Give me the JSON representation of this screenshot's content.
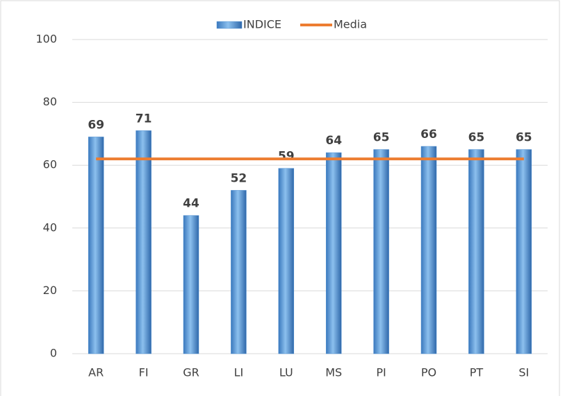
{
  "chart_data": {
    "type": "bar",
    "categories": [
      "AR",
      "FI",
      "GR",
      "LI",
      "LU",
      "MS",
      "PI",
      "PO",
      "PT",
      "SI"
    ],
    "series": [
      {
        "name": "INDICE",
        "type": "bar",
        "color": "#4f8fd1",
        "values": [
          69,
          71,
          44,
          52,
          59,
          64,
          65,
          66,
          65,
          65
        ]
      },
      {
        "name": "Media",
        "type": "line",
        "color": "#ed7d31",
        "values": [
          62,
          62,
          62,
          62,
          62,
          62,
          62,
          62,
          62,
          62
        ]
      }
    ],
    "ylim": [
      0,
      100
    ],
    "yticks": [
      0,
      20,
      40,
      60,
      80,
      100
    ],
    "grid": true,
    "legend": "top"
  }
}
